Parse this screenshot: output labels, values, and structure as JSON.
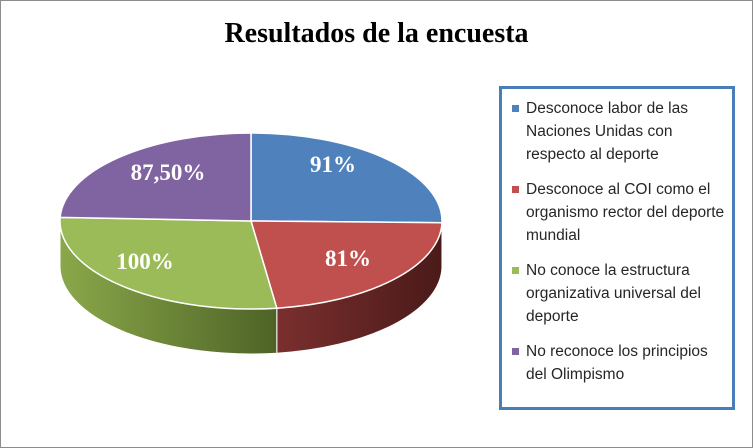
{
  "chart_data": {
    "type": "pie",
    "title": "Resultados de la encuesta",
    "slices": [
      {
        "name": "Desconoce labor de las Naciones Unidas con respecto al deporte",
        "value": 91,
        "label": "91%",
        "color": "#4f81bd"
      },
      {
        "name": "Desconoce al COI como el organismo rector del deporte mundial",
        "value": 81,
        "label": "81%",
        "color": "#c0504d"
      },
      {
        "name": "No conoce la estructura organizativa universal del deporte",
        "value": 100,
        "label": "100%",
        "color": "#9bbb59"
      },
      {
        "name": "No reconoce los principios del Olimpismo",
        "value": 87.5,
        "label": "87,50%",
        "color": "#8064a2"
      }
    ],
    "legend_position": "right",
    "style": "3d-pie"
  }
}
